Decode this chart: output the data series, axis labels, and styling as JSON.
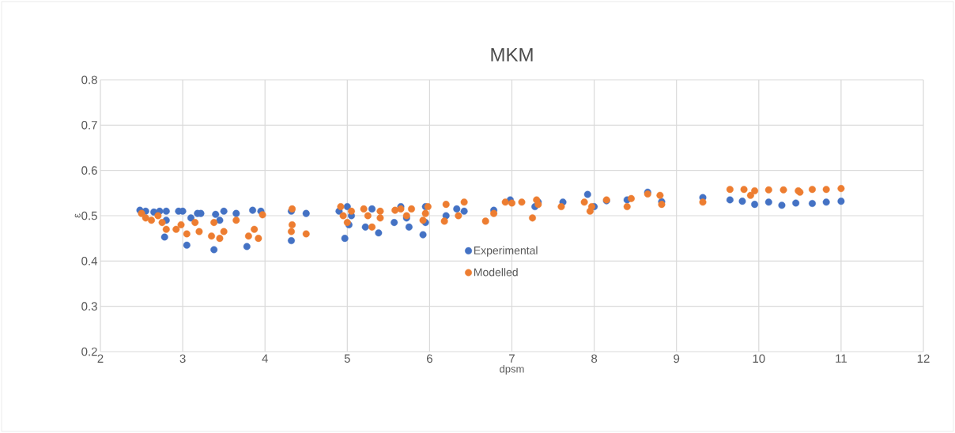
{
  "chart_data": {
    "type": "scatter",
    "title": "MKM",
    "xlabel": "dpsm",
    "ylabel": "ε",
    "xlim": [
      2,
      12
    ],
    "xticks": [
      2,
      3,
      4,
      5,
      6,
      7,
      8,
      9,
      10,
      11,
      12
    ],
    "ylim": [
      0.2,
      0.8
    ],
    "yticks": [
      0.2,
      0.3,
      0.4,
      0.5,
      0.6,
      0.7,
      0.8
    ],
    "grid": true,
    "legend": "center",
    "marker": "circle",
    "series": [
      {
        "name": "Experimental",
        "color": "#4472c4",
        "x": [
          2.48,
          2.55,
          2.65,
          2.72,
          2.8,
          2.78,
          2.8,
          2.95,
          3.0,
          3.05,
          3.1,
          3.18,
          3.22,
          3.38,
          3.4,
          3.45,
          3.5,
          3.65,
          3.78,
          3.85,
          3.95,
          4.32,
          4.32,
          4.5,
          4.9,
          4.97,
          5.0,
          5.05,
          5.02,
          5.22,
          5.3,
          5.38,
          5.57,
          5.65,
          5.72,
          5.75,
          5.92,
          5.95,
          5.95,
          6.2,
          6.33,
          6.42,
          6.78,
          6.98,
          7.28,
          7.32,
          7.62,
          7.92,
          8.0,
          8.15,
          8.4,
          8.65,
          8.82,
          9.32,
          9.65,
          9.8,
          9.95,
          10.12,
          10.28,
          10.45,
          10.65,
          10.82,
          11.0
        ],
        "values": [
          0.512,
          0.51,
          0.508,
          0.51,
          0.51,
          0.453,
          0.49,
          0.51,
          0.51,
          0.435,
          0.495,
          0.505,
          0.505,
          0.425,
          0.503,
          0.49,
          0.51,
          0.505,
          0.432,
          0.512,
          0.51,
          0.445,
          0.51,
          0.505,
          0.51,
          0.45,
          0.52,
          0.5,
          0.48,
          0.475,
          0.515,
          0.462,
          0.485,
          0.52,
          0.495,
          0.475,
          0.458,
          0.485,
          0.52,
          0.5,
          0.515,
          0.51,
          0.512,
          0.535,
          0.52,
          0.53,
          0.53,
          0.547,
          0.52,
          0.533,
          0.535,
          0.552,
          0.531,
          0.54,
          0.535,
          0.532,
          0.525,
          0.53,
          0.523,
          0.528,
          0.527,
          0.53,
          0.532
        ]
      },
      {
        "name": "Modelled",
        "color": "#ed7d31",
        "x": [
          2.5,
          2.55,
          2.62,
          2.7,
          2.75,
          2.8,
          2.92,
          2.98,
          3.05,
          3.15,
          3.2,
          3.35,
          3.38,
          3.45,
          3.5,
          3.65,
          3.8,
          3.87,
          3.92,
          3.97,
          4.33,
          4.33,
          4.32,
          4.5,
          4.92,
          4.95,
          5.0,
          5.05,
          5.2,
          5.25,
          5.3,
          5.4,
          5.4,
          5.58,
          5.65,
          5.72,
          5.78,
          5.92,
          5.95,
          5.98,
          6.18,
          6.2,
          6.35,
          6.42,
          6.68,
          6.78,
          6.92,
          7.0,
          7.12,
          7.25,
          7.3,
          7.32,
          7.6,
          7.88,
          7.95,
          7.97,
          8.15,
          8.4,
          8.45,
          8.65,
          8.8,
          8.82,
          9.32,
          9.65,
          9.82,
          9.9,
          9.95,
          10.12,
          10.3,
          10.48,
          10.5,
          10.65,
          10.82,
          11.0
        ],
        "values": [
          0.505,
          0.495,
          0.49,
          0.5,
          0.485,
          0.47,
          0.47,
          0.48,
          0.46,
          0.485,
          0.465,
          0.455,
          0.485,
          0.45,
          0.465,
          0.49,
          0.455,
          0.47,
          0.45,
          0.502,
          0.515,
          0.48,
          0.465,
          0.46,
          0.52,
          0.5,
          0.485,
          0.51,
          0.515,
          0.5,
          0.475,
          0.51,
          0.495,
          0.512,
          0.515,
          0.5,
          0.515,
          0.49,
          0.505,
          0.52,
          0.488,
          0.525,
          0.5,
          0.53,
          0.488,
          0.505,
          0.53,
          0.528,
          0.53,
          0.495,
          0.535,
          0.525,
          0.52,
          0.53,
          0.51,
          0.52,
          0.535,
          0.52,
          0.538,
          0.548,
          0.545,
          0.525,
          0.53,
          0.558,
          0.558,
          0.545,
          0.555,
          0.557,
          0.557,
          0.555,
          0.552,
          0.558,
          0.558,
          0.56
        ]
      }
    ]
  }
}
